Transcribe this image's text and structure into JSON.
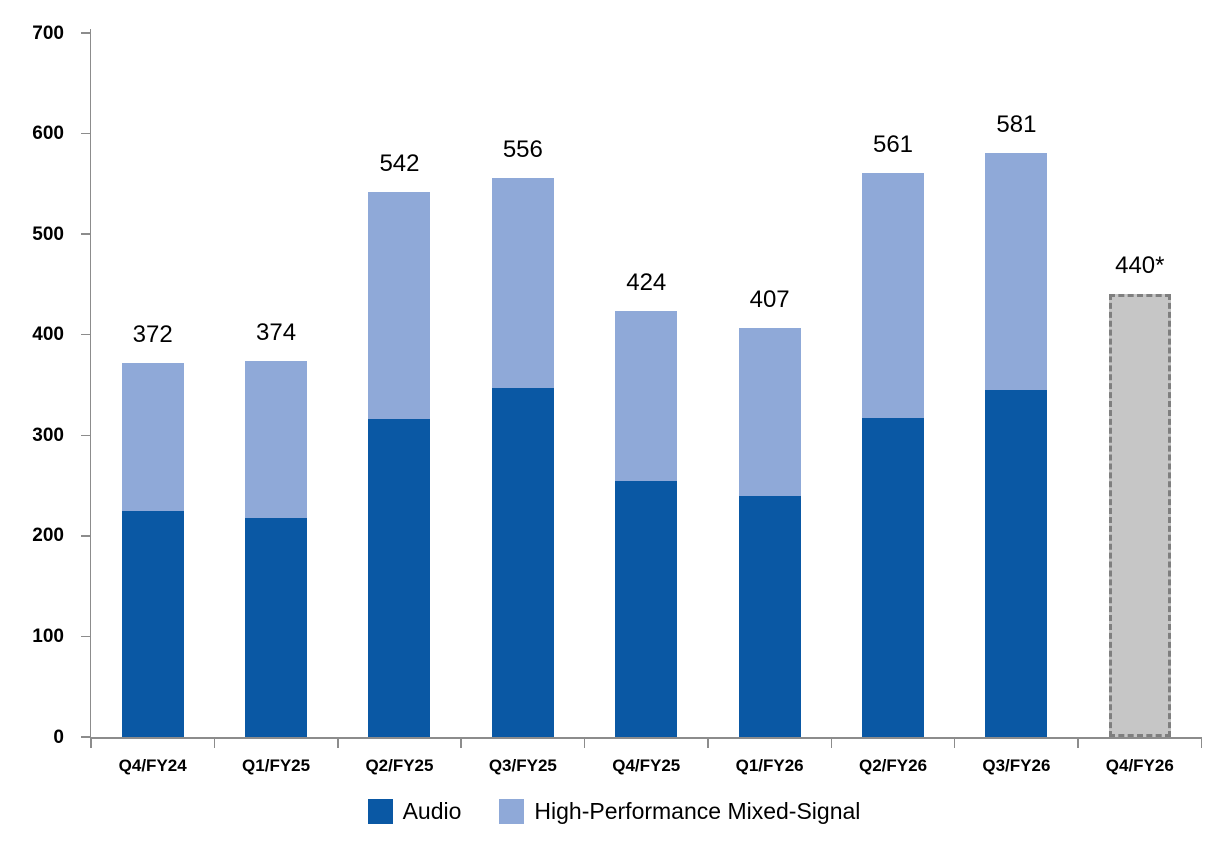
{
  "chart_data": {
    "type": "bar",
    "stacked": true,
    "title": "",
    "xlabel": "",
    "ylabel": "",
    "categories": [
      "Q4/FY24",
      "Q1/FY25",
      "Q2/FY25",
      "Q3/FY25",
      "Q4/FY25",
      "Q1/FY26",
      "Q2/FY26",
      "Q3/FY26",
      "Q4/FY26"
    ],
    "series": [
      {
        "name": "Audio",
        "color": "#0A58A4",
        "values": [
          225,
          218,
          316,
          347,
          255,
          240,
          317,
          345,
          0
        ]
      },
      {
        "name": "High-Performance Mixed-Signal",
        "color": "#8FA9D8",
        "values": [
          147,
          156,
          226,
          209,
          169,
          167,
          244,
          236,
          0
        ]
      }
    ],
    "totals": [
      372,
      374,
      542,
      556,
      424,
      407,
      561,
      581,
      440
    ],
    "total_labels": [
      "372",
      "374",
      "542",
      "556",
      "424",
      "407",
      "561",
      "581",
      "440*"
    ],
    "forecast": {
      "index": 8,
      "value": 440,
      "label": "440*",
      "fill": "#C6C6C6",
      "border": "#7F7F7F",
      "border_style": "dashed"
    },
    "ylim": [
      0,
      700
    ],
    "yticks": [
      0,
      100,
      200,
      300,
      400,
      500,
      600,
      700
    ],
    "grid": false,
    "legend_position": "bottom",
    "axis_color": "#8C8C8C"
  }
}
